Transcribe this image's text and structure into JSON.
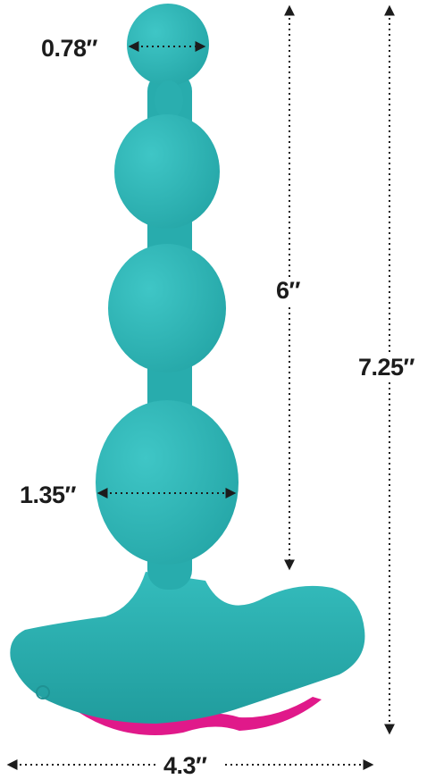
{
  "product_image": {
    "body_color": "#2cb4b5",
    "base_color": "#e0198a"
  },
  "dimensions": {
    "tip_width": "0.78″",
    "insertable_length": "6″",
    "total_length": "7.25″",
    "widest_bead": "1.35″",
    "base_width": "4.3″"
  }
}
